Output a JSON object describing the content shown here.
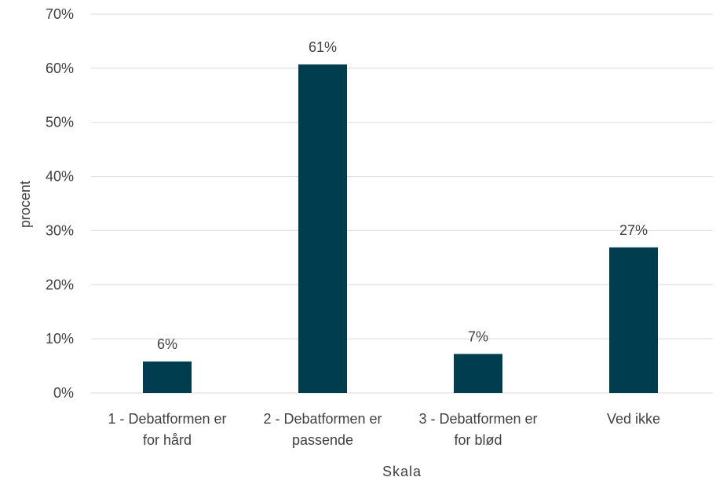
{
  "chart_data": {
    "type": "bar",
    "categories": [
      [
        "1 - Debatformen er",
        "for hård"
      ],
      [
        "2 - Debatformen er",
        "passende"
      ],
      [
        "3 - Debatformen er",
        "for blød"
      ],
      [
        "Ved ikke"
      ]
    ],
    "values": [
      5.8,
      60.7,
      7.2,
      26.9
    ],
    "data_labels": [
      "6%",
      "61%",
      "7%",
      "27%"
    ],
    "title": "",
    "xlabel": "Skala",
    "ylabel": "procent",
    "ylim": [
      0,
      70
    ],
    "yticks": [
      0,
      10,
      20,
      30,
      40,
      50,
      60,
      70
    ],
    "ytick_labels": [
      "0%",
      "10%",
      "20%",
      "30%",
      "40%",
      "50%",
      "60%",
      "70%"
    ],
    "grid": true,
    "legend": "none",
    "bar_color": "#003d4f"
  }
}
